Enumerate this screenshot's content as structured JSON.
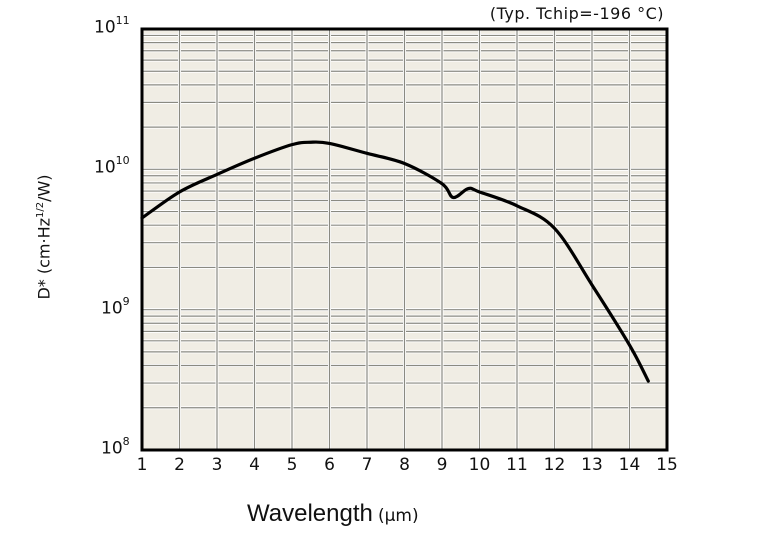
{
  "chart_data": {
    "type": "line",
    "title": "",
    "annotation": "(Typ. Tchip=-196 °C)",
    "xlabel": "Wavelength",
    "xlabel_unit": "(µm)",
    "ylabel": "D* (cm·Hz1/2/W)",
    "ylabel_parts": {
      "pre": "D* (cm·Hz",
      "sup": "1/2",
      "post": "/W)"
    },
    "xlim": [
      1,
      15
    ],
    "ylim": [
      100000000.0,
      100000000000.0
    ],
    "yscale": "log",
    "grid": true,
    "x_ticks": [
      "1",
      "2",
      "3",
      "4",
      "5",
      "6",
      "7",
      "8",
      "9",
      "10",
      "11",
      "12",
      "13",
      "14",
      "15"
    ],
    "y_ticks": [
      {
        "base": "10",
        "exp": "11",
        "value": 100000000000.0
      },
      {
        "base": "10",
        "exp": "10",
        "value": 10000000000.0
      },
      {
        "base": "10",
        "exp": "9",
        "value": 1000000000.0
      },
      {
        "base": "10",
        "exp": "8",
        "value": 100000000.0
      }
    ],
    "series": [
      {
        "name": "D*",
        "x": [
          1,
          2,
          3,
          4,
          5,
          5.5,
          6,
          7,
          8,
          9,
          9.3,
          9.7,
          10,
          11,
          12,
          13,
          14,
          14.5
        ],
        "values": [
          4500000000.0,
          6900000000.0,
          9200000000.0,
          12000000000.0,
          15000000000.0,
          15600000000.0,
          15300000000.0,
          13000000000.0,
          11000000000.0,
          7900000000.0,
          6300000000.0,
          7300000000.0,
          6900000000.0,
          5500000000.0,
          3800000000.0,
          1500000000.0,
          560000000.0,
          310000000.0
        ]
      }
    ]
  },
  "colors": {
    "plot_background": "#f0ede4",
    "grid_line": "#8a8a82",
    "grid_highlight": "#ffffff",
    "frame": "#000000",
    "curve": "#000000"
  }
}
